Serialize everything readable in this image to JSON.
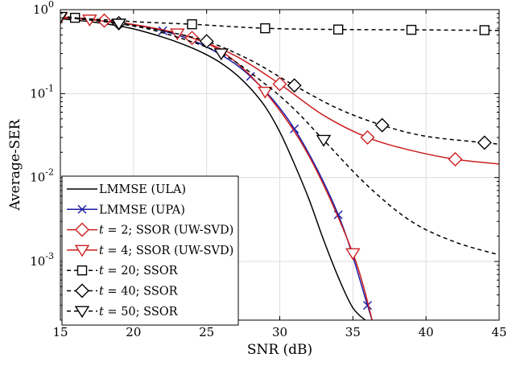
{
  "chart_data": {
    "type": "line",
    "xlabel": "SNR (dB)",
    "ylabel": "Average-SER",
    "xlim": [
      15,
      45
    ],
    "ylim": [
      0.0002,
      1
    ],
    "yscale": "log",
    "grid": true,
    "legend_position": "bottom-left",
    "x_ticks": [
      "15",
      "20",
      "25",
      "30",
      "35",
      "40",
      "45"
    ],
    "y_ticks": [
      {
        "base": "10",
        "exp": "0"
      },
      {
        "base": "10",
        "exp": "-1"
      },
      {
        "base": "10",
        "exp": "-2"
      },
      {
        "base": "10",
        "exp": "-3"
      }
    ],
    "series": [
      {
        "name": "LMMSE (ULA)",
        "color": "#000000",
        "dash": "solid",
        "marker": "none",
        "x": [
          15,
          16,
          17,
          18,
          19,
          20,
          21,
          22,
          23,
          24,
          25,
          26,
          27,
          28,
          29,
          30,
          31,
          32,
          33,
          34,
          35,
          36
        ],
        "y": [
          0.78,
          0.75,
          0.72,
          0.68,
          0.64,
          0.59,
          0.53,
          0.47,
          0.41,
          0.35,
          0.29,
          0.23,
          0.17,
          0.115,
          0.07,
          0.035,
          0.0145,
          0.0055,
          0.0018,
          0.00065,
          0.00028,
          0.00019
        ]
      },
      {
        "name": "LMMSE (UPA)",
        "color": "#1a1aa6",
        "dash": "solid",
        "marker": "x",
        "x": [
          16,
          22,
          28,
          31,
          34,
          36
        ],
        "y": [
          0.8,
          0.56,
          0.16,
          0.038,
          0.0036,
          0.0003
        ]
      },
      {
        "name": "t = 2; SSOR (UW-SVD)",
        "color": "#cc1f1f",
        "dash": "solid",
        "marker": "diamond",
        "x": [
          18,
          24,
          30,
          36,
          42
        ],
        "y": [
          0.74,
          0.46,
          0.13,
          0.03,
          0.0165
        ]
      },
      {
        "name": "t = 4; SSOR (UW-SVD)",
        "color": "#cc1f1f",
        "dash": "solid",
        "marker": "triangle-down",
        "x": [
          15,
          17,
          23,
          29,
          35
        ],
        "y": [
          0.8,
          0.76,
          0.52,
          0.105,
          0.00125
        ]
      },
      {
        "name": "t = 20; SSOR",
        "color": "#000000",
        "dash": "dashed",
        "marker": "square",
        "x": [
          16,
          24,
          29,
          34,
          39,
          44
        ],
        "y": [
          0.8,
          0.67,
          0.6,
          0.58,
          0.575,
          0.57
        ]
      },
      {
        "name": "t = 40; SSOR",
        "color": "#000000",
        "dash": "dashed",
        "marker": "diamond",
        "x": [
          19,
          25,
          31,
          37,
          44
        ],
        "y": [
          0.69,
          0.42,
          0.125,
          0.042,
          0.026
        ]
      },
      {
        "name": "t = 50; SSOR",
        "color": "#000000",
        "dash": "dashed",
        "marker": "triangle-down",
        "x": [
          15,
          19,
          26,
          33
        ],
        "y": [
          0.82,
          0.68,
          0.3,
          0.028
        ]
      }
    ],
    "legend": {
      "entries": [
        {
          "series": 0,
          "plain": "LMMSE (ULA)"
        },
        {
          "series": 1,
          "plain": "LMMSE (UPA)"
        },
        {
          "series": 2,
          "var": "t",
          "rest": " = 2; SSOR (UW-SVD)"
        },
        {
          "series": 3,
          "var": "t",
          "rest": " = 4; SSOR (UW-SVD)"
        },
        {
          "series": 4,
          "var": "t",
          "rest": " = 20; SSOR"
        },
        {
          "series": 5,
          "var": "t",
          "rest": " = 40; SSOR"
        },
        {
          "series": 6,
          "var": "t",
          "rest": " = 50; SSOR"
        }
      ]
    }
  }
}
